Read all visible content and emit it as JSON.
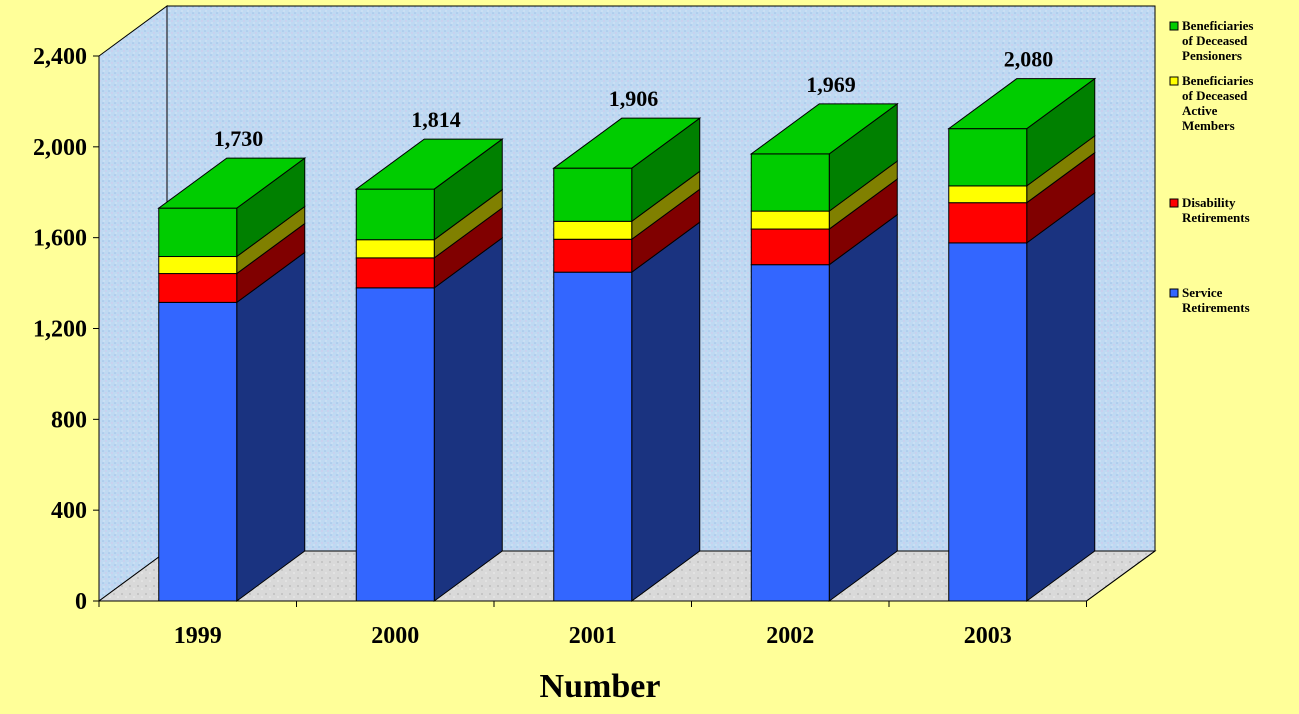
{
  "chart_data": {
    "type": "bar",
    "stacked": true,
    "three_d": true,
    "categories": [
      "1999",
      "2000",
      "2001",
      "2002",
      "2003"
    ],
    "series": [
      {
        "name": "Service Retirements",
        "values": [
          1315,
          1379,
          1448,
          1481,
          1577
        ],
        "color": "#3366FF",
        "side_color": "#1A3380"
      },
      {
        "name": "Disability Retirements",
        "values": [
          127,
          132,
          145,
          157,
          177
        ],
        "color": "#FF0000",
        "side_color": "#800000"
      },
      {
        "name": "Beneficiaries of Deceased Active Members",
        "values": [
          75,
          80,
          79,
          79,
          74
        ],
        "color": "#FFFF00",
        "side_color": "#808000"
      },
      {
        "name": "Beneficiaries of Deceased Pensioners",
        "values": [
          213,
          223,
          234,
          252,
          252
        ],
        "color": "#00CC00",
        "side_color": "#008000"
      }
    ],
    "totals": [
      "1,730",
      "1,814",
      "1,906",
      "1,969",
      "2,080"
    ],
    "y_ticks": [
      "0",
      "400",
      "800",
      "1,200",
      "1,600",
      "2,000",
      "2,400"
    ],
    "ylim": [
      0,
      2400
    ],
    "xlabel": "Number",
    "ylabel": "",
    "title": "",
    "legend_position": "right",
    "grid": false,
    "background_color": "#FFFF99",
    "wall_color": "#BFD9F2",
    "floor_color": "#D9D9D9"
  }
}
